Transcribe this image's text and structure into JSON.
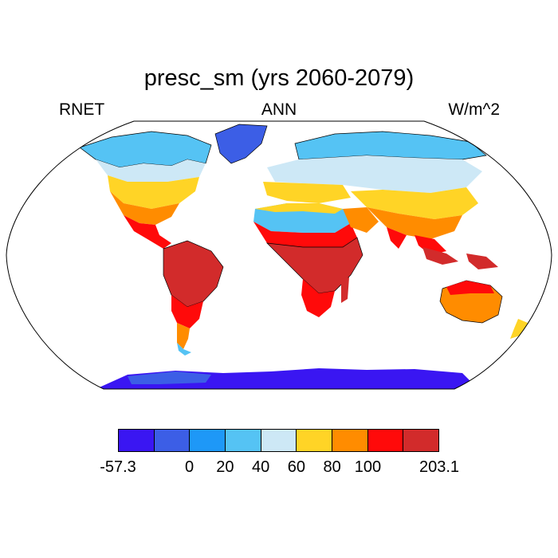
{
  "title": "presc_sm (yrs 2060-2079)",
  "left_label": "RNET",
  "center_label": "ANN",
  "right_label": "W/m^2",
  "colorbar": {
    "colors": [
      "#3a16f2",
      "#3c5ee6",
      "#1e98f7",
      "#55c3f4",
      "#cde8f6",
      "#ffd426",
      "#ff8c00",
      "#ff0a0a",
      "#d22b2b"
    ],
    "labels": [
      "-57.3",
      "0",
      "20",
      "40",
      "60",
      "80",
      "100",
      "203.1"
    ]
  },
  "map_colors": {
    "ice_blue": "#3a16f2",
    "deep_blue": "#3c5ee6",
    "mid_blue": "#1e98f7",
    "light_blue": "#55c3f4",
    "pale_blue": "#cde8f6",
    "yellow": "#ffd426",
    "orange": "#ff8c00",
    "red": "#ff0a0a",
    "dark_red": "#d22b2b"
  }
}
